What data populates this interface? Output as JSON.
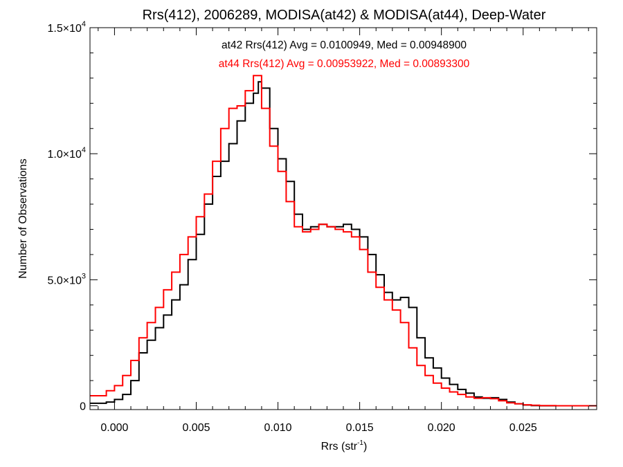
{
  "chart_data": {
    "type": "line",
    "title": "Rrs(412), 2006289, MODISA(at42) & MODISA(at44), Deep-Water",
    "xlabel": "Rrs (str",
    "xlabel_sup": "-1",
    "xlabel_suffix": ")",
    "ylabel": "Number of Observations",
    "xlim": [
      -0.0015,
      0.0295
    ],
    "ylim": [
      -150,
      15000
    ],
    "x_ticks": [
      0.0,
      0.005,
      0.01,
      0.015,
      0.02,
      0.025
    ],
    "x_tick_labels": [
      "0.000",
      "0.005",
      "0.010",
      "0.015",
      "0.020",
      "0.025"
    ],
    "y_ticks": [
      0,
      5000,
      10000,
      15000
    ],
    "y_tick_labels": [
      {
        "base": "0",
        "exp": ""
      },
      {
        "base": "5.0×10",
        "exp": "3"
      },
      {
        "base": "1.0×10",
        "exp": "4"
      },
      {
        "base": "1.5×10",
        "exp": "4"
      }
    ],
    "grid": false,
    "legend": "top-center",
    "series": [
      {
        "name": "at42",
        "color": "#000000",
        "label": "at42 Rrs(412) Avg = 0.0100949, Med = 0.00948900",
        "x": [
          -0.0015,
          -0.0005,
          0.0,
          0.0005,
          0.001,
          0.0015,
          0.002,
          0.0025,
          0.003,
          0.0035,
          0.004,
          0.0045,
          0.005,
          0.0055,
          0.006,
          0.0065,
          0.007,
          0.0075,
          0.008,
          0.0085,
          0.0088,
          0.009,
          0.0095,
          0.01,
          0.0105,
          0.011,
          0.0115,
          0.012,
          0.0125,
          0.013,
          0.0135,
          0.014,
          0.0145,
          0.015,
          0.0155,
          0.016,
          0.0165,
          0.017,
          0.0175,
          0.018,
          0.0185,
          0.019,
          0.0195,
          0.02,
          0.0205,
          0.021,
          0.0215,
          0.022,
          0.0225,
          0.023,
          0.0235,
          0.024,
          0.0245,
          0.025,
          0.0255,
          0.026,
          0.027,
          0.0295
        ],
        "y": [
          100,
          150,
          250,
          450,
          1000,
          2100,
          2600,
          3100,
          3600,
          4200,
          4800,
          5800,
          6800,
          8000,
          9100,
          9700,
          10400,
          11300,
          12000,
          12400,
          12850,
          12600,
          11000,
          9800,
          8900,
          7600,
          7000,
          7100,
          7200,
          7100,
          7100,
          7200,
          7000,
          6700,
          6000,
          5200,
          4500,
          4200,
          4300,
          3900,
          2700,
          1900,
          1500,
          1100,
          850,
          650,
          500,
          350,
          300,
          320,
          250,
          150,
          80,
          30,
          10,
          0,
          0,
          0
        ]
      },
      {
        "name": "at44",
        "color": "#ff0000",
        "label": "at44 Rrs(412) Avg = 0.00953922, Med = 0.00893300",
        "x": [
          -0.0015,
          -0.0005,
          0.0,
          0.0005,
          0.001,
          0.0015,
          0.002,
          0.0025,
          0.003,
          0.0035,
          0.004,
          0.0045,
          0.005,
          0.0055,
          0.006,
          0.0065,
          0.007,
          0.0075,
          0.008,
          0.0085,
          0.009,
          0.0095,
          0.01,
          0.0105,
          0.011,
          0.0115,
          0.012,
          0.0125,
          0.013,
          0.0135,
          0.014,
          0.0145,
          0.015,
          0.0155,
          0.016,
          0.0165,
          0.017,
          0.0175,
          0.018,
          0.0185,
          0.019,
          0.0195,
          0.02,
          0.0205,
          0.021,
          0.0215,
          0.022,
          0.0225,
          0.023,
          0.0235,
          0.024,
          0.0245,
          0.025,
          0.0255,
          0.026,
          0.027,
          0.0295
        ],
        "y": [
          400,
          600,
          800,
          1200,
          1800,
          2700,
          3300,
          3900,
          4600,
          5300,
          6000,
          6700,
          7500,
          8400,
          9700,
          11000,
          11800,
          11900,
          12500,
          13100,
          11800,
          10300,
          9300,
          8100,
          7100,
          6900,
          7000,
          7200,
          7100,
          7000,
          6900,
          6700,
          6200,
          5300,
          4700,
          4200,
          3800,
          3300,
          2300,
          1600,
          1200,
          900,
          700,
          550,
          450,
          350,
          300,
          320,
          280,
          200,
          120,
          80,
          40,
          20,
          10,
          0,
          0
        ]
      }
    ]
  }
}
